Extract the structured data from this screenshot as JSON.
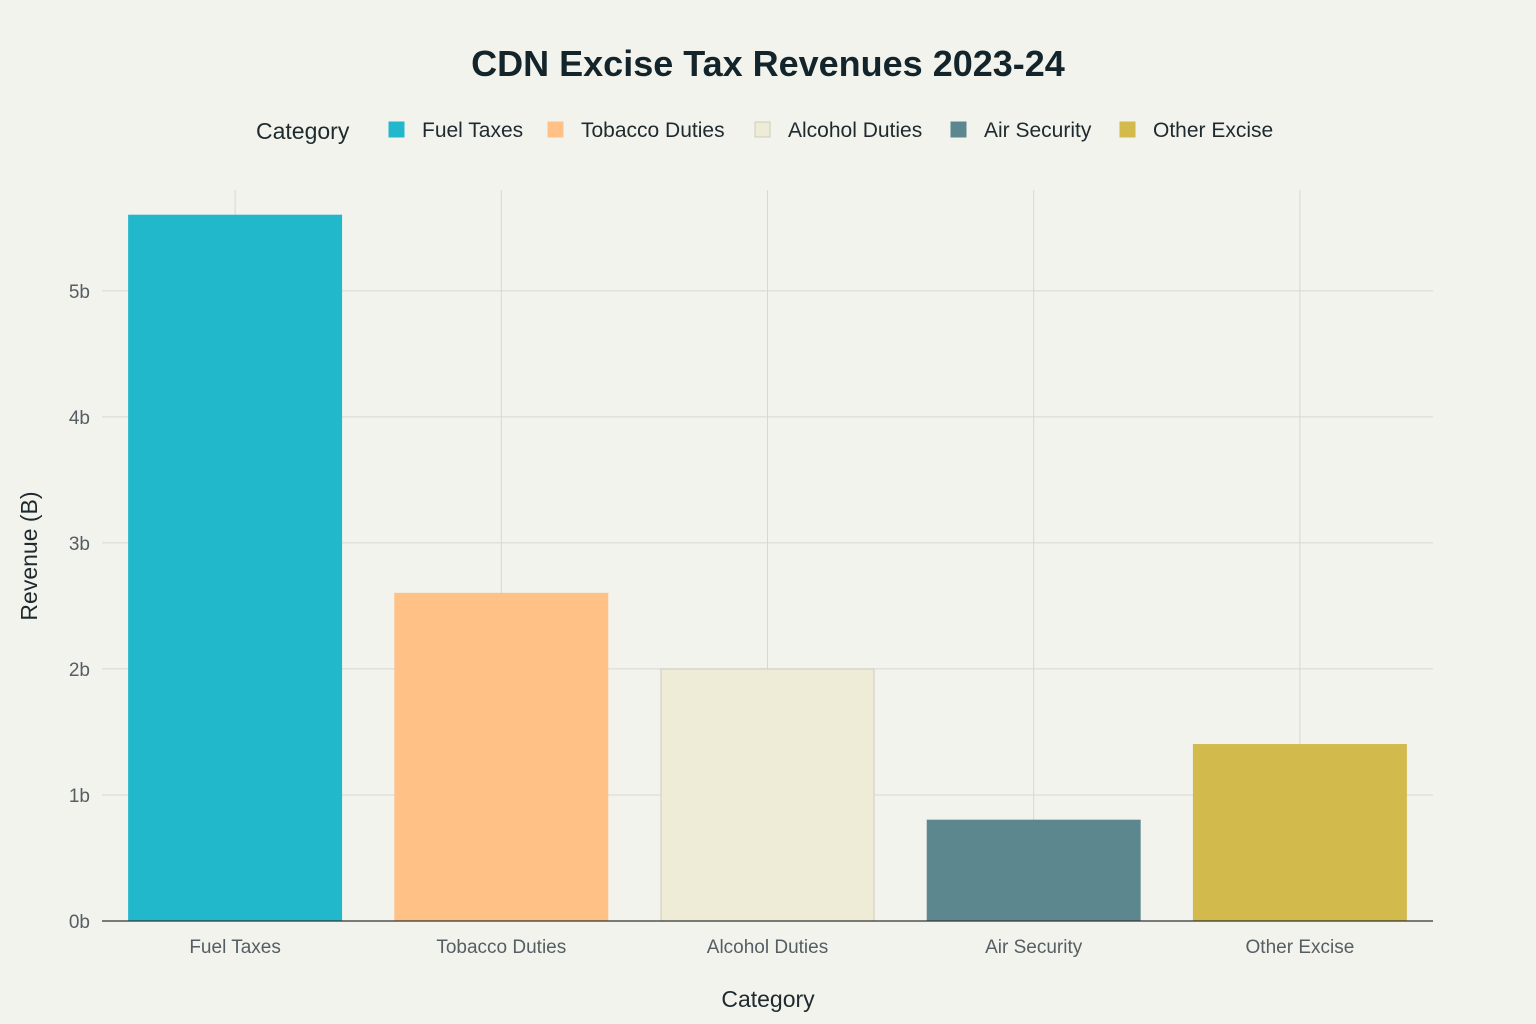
{
  "chart_data": {
    "type": "bar",
    "title": "CDN Excise Tax Revenues 2023-24",
    "xlabel": "Category",
    "ylabel": "Revenue (B)",
    "categories": [
      "Fuel Taxes",
      "Tobacco Duties",
      "Alcohol Duties",
      "Air Security",
      "Other Excise"
    ],
    "values": [
      5.6,
      2.6,
      2.0,
      0.8,
      1.4
    ],
    "colors": [
      "#21b8cc",
      "#ffc186",
      "#eeebd6",
      "#5d878f",
      "#d2ba4c"
    ],
    "ylim": [
      0,
      5.8
    ],
    "yticks": [
      0,
      1,
      2,
      3,
      4,
      5
    ],
    "ytick_labels": [
      "0b",
      "1b",
      "2b",
      "3b",
      "4b",
      "5b"
    ],
    "legend": {
      "title": "Category",
      "placement": "top",
      "entries": [
        "Fuel Taxes",
        "Tobacco Duties",
        "Alcohol Duties",
        "Air Security",
        "Other Excise"
      ]
    },
    "grid": true
  }
}
